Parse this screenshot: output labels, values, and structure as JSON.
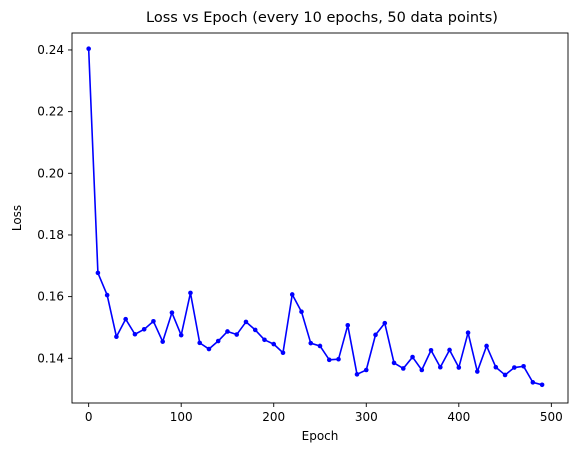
{
  "chart_data": {
    "type": "line",
    "title": "Loss vs Epoch (every 10 epochs, 50 data points)",
    "xlabel": "Epoch",
    "ylabel": "Loss",
    "xlim": [
      -18,
      518
    ],
    "ylim": [
      0.1255,
      0.2455
    ],
    "xticks": [
      0,
      100,
      200,
      300,
      400,
      500
    ],
    "yticks": [
      0.14,
      0.16,
      0.18,
      0.2,
      0.22,
      0.24
    ],
    "grid": false,
    "series": [
      {
        "color": "#0000ff",
        "marker": "circle",
        "x": [
          0,
          10,
          20,
          30,
          40,
          50,
          60,
          70,
          80,
          90,
          100,
          110,
          120,
          130,
          140,
          150,
          160,
          170,
          180,
          190,
          200,
          210,
          220,
          230,
          240,
          250,
          260,
          270,
          280,
          290,
          300,
          310,
          320,
          330,
          340,
          350,
          360,
          370,
          380,
          390,
          400,
          410,
          420,
          430,
          440,
          450,
          460,
          470,
          480,
          490
        ],
        "values": [
          0.2404,
          0.1677,
          0.1605,
          0.147,
          0.1527,
          0.1478,
          0.1494,
          0.152,
          0.1454,
          0.1548,
          0.1475,
          0.1612,
          0.145,
          0.143,
          0.1456,
          0.1487,
          0.1477,
          0.1518,
          0.1492,
          0.146,
          0.1446,
          0.1418,
          0.1607,
          0.1551,
          0.1449,
          0.144,
          0.1395,
          0.1397,
          0.1507,
          0.1348,
          0.1362,
          0.1476,
          0.1514,
          0.1385,
          0.1367,
          0.1404,
          0.1362,
          0.1426,
          0.1371,
          0.1427,
          0.137,
          0.1483,
          0.1357,
          0.144,
          0.1371,
          0.1346,
          0.137,
          0.1374,
          0.1322,
          0.1314
        ]
      }
    ]
  }
}
